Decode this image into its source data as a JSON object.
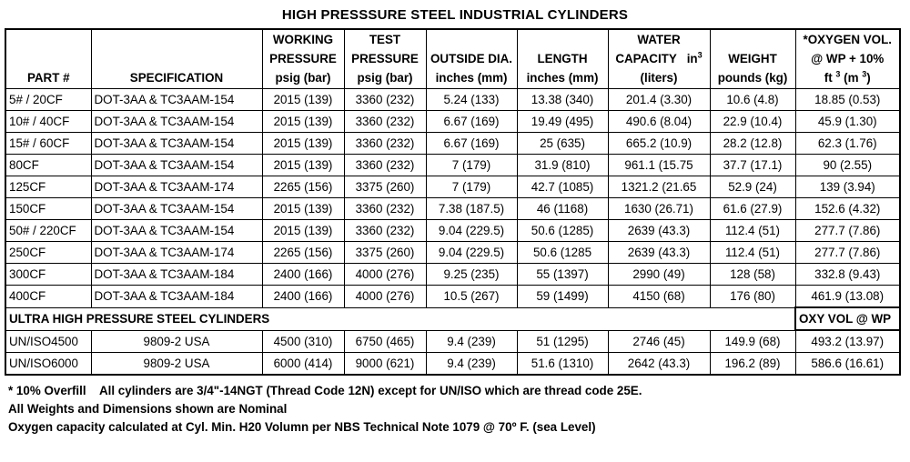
{
  "title": "HIGH PRESSSURE STEEL INDUSTRIAL CYLINDERS",
  "headers": {
    "part": "PART #",
    "spec": "SPECIFICATION",
    "working": [
      "WORKING",
      "PRESSURE",
      "psig (bar)"
    ],
    "test": [
      "TEST",
      "PRESSURE",
      "psig (bar)"
    ],
    "od": [
      "OUTSIDE DIA.",
      "inches (mm)"
    ],
    "length": [
      "LENGTH",
      "inches (mm)"
    ],
    "water": [
      "WATER",
      "CAPACITY   in",
      "3",
      "(liters)"
    ],
    "weight": [
      "WEIGHT",
      "pounds (kg)"
    ],
    "oxygen": [
      "*OXYGEN VOL.",
      "@ WP + 10%",
      "ft ",
      "3",
      " (m ",
      "3",
      ")"
    ]
  },
  "industrial_rows": [
    [
      "5# / 20CF",
      "DOT-3AA & TC3AAM-154",
      "2015 (139)",
      "3360 (232)",
      "5.24 (133)",
      "13.38 (340)",
      "201.4 (3.30)",
      "10.6 (4.8)",
      "18.85 (0.53)"
    ],
    [
      "10# / 40CF",
      "DOT-3AA & TC3AAM-154",
      "2015 (139)",
      "3360 (232)",
      "6.67 (169)",
      "19.49 (495)",
      "490.6 (8.04)",
      "22.9 (10.4)",
      "45.9 (1.30)"
    ],
    [
      "15# / 60CF",
      "DOT-3AA & TC3AAM-154",
      "2015 (139)",
      "3360 (232)",
      "6.67 (169)",
      "25 (635)",
      "665.2 (10.9)",
      "28.2 (12.8)",
      "62.3 (1.76)"
    ],
    [
      "80CF",
      "DOT-3AA & TC3AAM-154",
      "2015 (139)",
      "3360 (232)",
      "7 (179)",
      "31.9 (810)",
      "961.1 (15.75",
      "37.7 (17.1)",
      "90 (2.55)"
    ],
    [
      "125CF",
      "DOT-3AA & TC3AAM-174",
      "2265 (156)",
      "3375 (260)",
      "7 (179)",
      "42.7 (1085)",
      "1321.2 (21.65",
      "52.9 (24)",
      "139 (3.94)"
    ],
    [
      "150CF",
      "DOT-3AA & TC3AAM-154",
      "2015 (139)",
      "3360 (232)",
      "7.38 (187.5)",
      "46 (1168)",
      "1630 (26.71)",
      "61.6 (27.9)",
      "152.6 (4.32)"
    ],
    [
      "50# / 220CF",
      "DOT-3AA & TC3AAM-154",
      "2015 (139)",
      "3360 (232)",
      "9.04 (229.5)",
      "50.6 (1285)",
      "2639 (43.3)",
      "112.4 (51)",
      "277.7 (7.86)"
    ],
    [
      "250CF",
      "DOT-3AA & TC3AAM-174",
      "2265 (156)",
      "3375 (260)",
      "9.04 (229.5)",
      "50.6 (1285",
      "2639 (43.3)",
      "112.4 (51)",
      "277.7 (7.86)"
    ],
    [
      "300CF",
      "DOT-3AA & TC3AAM-184",
      "2400 (166)",
      "4000 (276)",
      "9.25 (235)",
      "55 (1397)",
      "2990 (49)",
      "128 (58)",
      "332.8 (9.43)"
    ],
    [
      "400CF",
      "DOT-3AA & TC3AAM-184",
      "2400 (166)",
      "4000 (276)",
      "10.5 (267)",
      "59 (1499)",
      "4150 (68)",
      "176 (80)",
      "461.9 (13.08)"
    ]
  ],
  "ultra_section": {
    "label": "ULTRA HIGH PRESSURE STEEL CYLINDERS",
    "oxy_label": "OXY VOL @ WP"
  },
  "ultra_rows": [
    [
      "UN/ISO4500",
      "9809-2 USA",
      "4500 (310)",
      "6750 (465)",
      "9.4 (239)",
      "51 (1295)",
      "2746 (45)",
      "149.9 (68)",
      "493.2 (13.97)"
    ],
    [
      "UN/ISO6000",
      "9809-2 USA",
      "6000 (414)",
      "9000 (621)",
      "9.4 (239)",
      "51.6 (1310)",
      "2642 (43.3)",
      "196.2 (89)",
      "586.6 (16.61)"
    ]
  ],
  "notes": [
    "* 10% Overfill    All cylinders are 3/4\"-14NGT (Thread Code 12N) except for UN/ISO which are thread code 25E.",
    "All Weights and Dimensions shown are Nominal",
    "Oxygen capacity calculated at Cyl. Min. H20 Volumn per NBS Technical Note 1079 @ 70º F. (sea Level)"
  ]
}
